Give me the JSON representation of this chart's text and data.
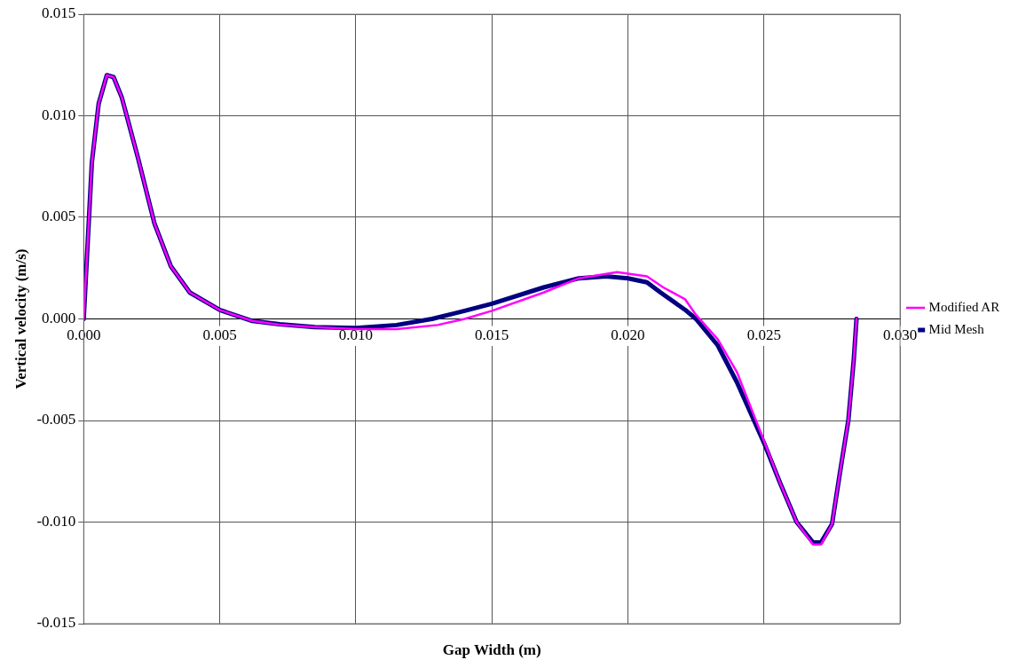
{
  "chart_data": {
    "type": "line",
    "xlabel": "Gap Width (m)",
    "ylabel": "Vertical velocity (m/s)",
    "xlim": [
      0,
      0.03
    ],
    "ylim": [
      -0.015,
      0.015
    ],
    "xticks": [
      {
        "value": 0,
        "label": "0.000"
      },
      {
        "value": 0.005,
        "label": "0.005"
      },
      {
        "value": 0.01,
        "label": "0.010"
      },
      {
        "value": 0.015,
        "label": "0.015"
      },
      {
        "value": 0.02,
        "label": "0.020"
      },
      {
        "value": 0.025,
        "label": "0.025"
      },
      {
        "value": 0.03,
        "label": "0.030"
      }
    ],
    "yticks": [
      {
        "value": -0.015,
        "label": "-0.015"
      },
      {
        "value": -0.01,
        "label": "-0.010"
      },
      {
        "value": -0.005,
        "label": "-0.005"
      },
      {
        "value": 0,
        "label": "0.000"
      },
      {
        "value": 0.005,
        "label": "0.005"
      },
      {
        "value": 0.01,
        "label": "0.010"
      },
      {
        "value": 0.015,
        "label": "0.015"
      }
    ],
    "grid": true,
    "legend": "right",
    "marker": "none",
    "line_style": "solid",
    "series": [
      {
        "name": "Mid Mesh",
        "color": "#000080",
        "x": [
          0,
          0.0003,
          0.00055,
          0.00085,
          0.0011,
          0.0014,
          0.002,
          0.0026,
          0.0032,
          0.0039,
          0.005,
          0.0062,
          0.0072,
          0.0085,
          0.01,
          0.0115,
          0.0128,
          0.014,
          0.015,
          0.0169,
          0.0182,
          0.0192,
          0.02,
          0.0207,
          0.0212,
          0.0221,
          0.0225,
          0.0233,
          0.024,
          0.025,
          0.0256,
          0.0262,
          0.0268,
          0.0271,
          0.0275,
          0.0278,
          0.0281,
          0.0283,
          0.0284
        ],
        "values": [
          0,
          0.0077,
          0.0106,
          0.012,
          0.0119,
          0.0109,
          0.0079,
          0.0047,
          0.0026,
          0.0013,
          0.00044,
          -0.0001,
          -0.00026,
          -0.0004,
          -0.00045,
          -0.0003,
          0,
          0.0004,
          0.00075,
          0.00155,
          0.002,
          0.0021,
          0.002,
          0.0018,
          0.0013,
          0.00045,
          0,
          -0.0013,
          -0.0031,
          -0.0061,
          -0.0081,
          -0.01,
          -0.011,
          -0.011,
          -0.0101,
          -0.0075,
          -0.005,
          -0.002,
          0
        ]
      },
      {
        "name": "Modified AR",
        "color": "#ff00ff",
        "x": [
          0,
          0.0003,
          0.00055,
          0.00085,
          0.0011,
          0.0014,
          0.002,
          0.0026,
          0.0032,
          0.0039,
          0.005,
          0.0062,
          0.0072,
          0.0085,
          0.01,
          0.0115,
          0.013,
          0.014,
          0.015,
          0.0169,
          0.0182,
          0.0196,
          0.0207,
          0.0213,
          0.0221,
          0.0225,
          0.0233,
          0.024,
          0.025,
          0.0256,
          0.0262,
          0.0268,
          0.0271,
          0.0275,
          0.0278,
          0.0281,
          0.0283,
          0.0284
        ],
        "values": [
          0,
          0.0077,
          0.0106,
          0.012,
          0.0119,
          0.0109,
          0.0079,
          0.0047,
          0.0026,
          0.0013,
          0.00044,
          -0.0001,
          -0.00028,
          -0.0004,
          -0.0005,
          -0.0005,
          -0.0003,
          0,
          0.0004,
          0.0013,
          0.002,
          0.0023,
          0.0021,
          0.00155,
          0.00097,
          0.0002,
          -0.001,
          -0.0026,
          -0.006,
          -0.0081,
          -0.01,
          -0.0111,
          -0.0111,
          -0.0101,
          -0.0075,
          -0.005,
          -0.002,
          0
        ]
      }
    ]
  }
}
